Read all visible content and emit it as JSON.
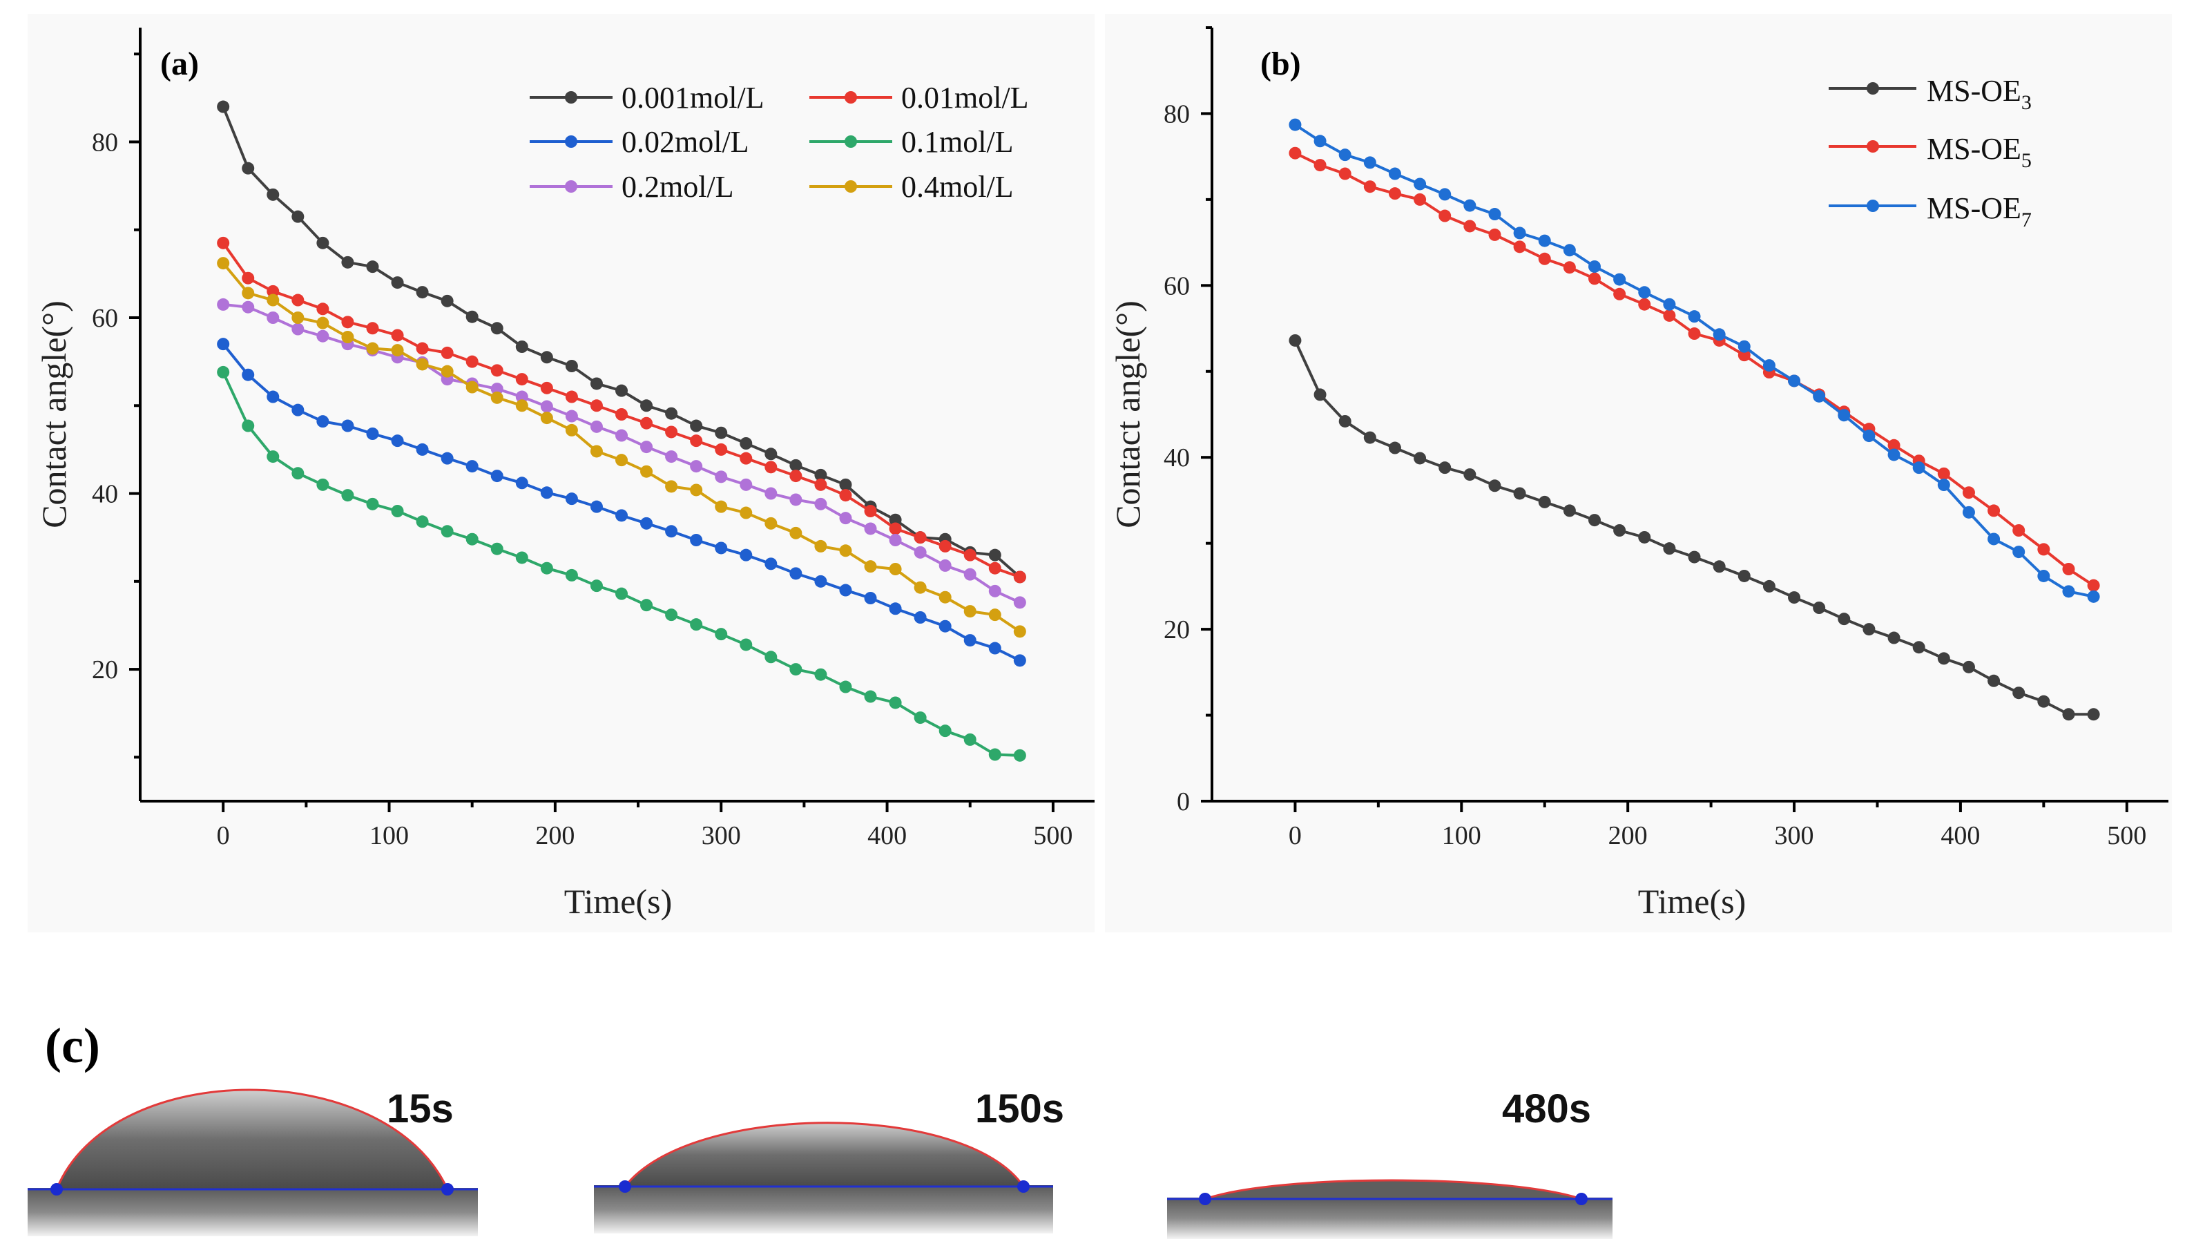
{
  "chart_data": [
    {
      "type": "line",
      "panel_label": "(a)",
      "xlabel": "Time(s)",
      "ylabel": "Contact angle(°)",
      "xlim": [
        -50,
        525
      ],
      "ylim": [
        5,
        93
      ],
      "xticks": [
        0,
        100,
        200,
        300,
        400,
        500
      ],
      "yticks": [
        20,
        40,
        60,
        80
      ],
      "x": [
        0,
        15,
        30,
        45,
        60,
        75,
        90,
        105,
        120,
        135,
        150,
        165,
        180,
        195,
        210,
        225,
        240,
        255,
        270,
        285,
        300,
        315,
        330,
        345,
        360,
        375,
        390,
        405,
        420,
        435,
        450,
        465,
        480
      ],
      "legend_position": "top-right",
      "series": [
        {
          "name": "0.001mol/L",
          "color": "#404040",
          "values": [
            84.0,
            77.0,
            74.0,
            71.5,
            68.5,
            66.3,
            65.8,
            64.0,
            62.9,
            61.9,
            60.1,
            58.8,
            56.7,
            55.5,
            54.5,
            52.5,
            51.7,
            50.0,
            49.1,
            47.7,
            46.9,
            45.7,
            44.5,
            43.2,
            42.1,
            41.0,
            38.5,
            37.0,
            35.0,
            34.8,
            33.3,
            33.0,
            30.5
          ]
        },
        {
          "name": "0.01mol/L",
          "color": "#e8382f",
          "values": [
            68.5,
            64.5,
            63.0,
            62.0,
            61.0,
            59.5,
            58.8,
            58.0,
            56.5,
            56.0,
            55.0,
            54.0,
            53.0,
            52.0,
            51.0,
            50.0,
            49.0,
            48.0,
            47.0,
            46.0,
            45.0,
            44.0,
            43.0,
            42.0,
            41.0,
            39.8,
            38.0,
            36.0,
            35.0,
            34.0,
            33.0,
            31.5,
            30.5
          ]
        },
        {
          "name": "0.02mol/L",
          "color": "#1f5fd0",
          "values": [
            57.0,
            53.5,
            51.0,
            49.5,
            48.2,
            47.7,
            46.8,
            46.0,
            45.0,
            44.0,
            43.1,
            42.0,
            41.2,
            40.1,
            39.4,
            38.5,
            37.5,
            36.6,
            35.7,
            34.7,
            33.8,
            33.0,
            32.0,
            30.9,
            30.0,
            29.0,
            28.1,
            26.9,
            25.9,
            24.9,
            23.3,
            22.4,
            21.0
          ]
        },
        {
          "name": "0.1mol/L",
          "color": "#2ea86a",
          "values": [
            53.8,
            47.7,
            44.2,
            42.3,
            41.0,
            39.8,
            38.8,
            38.0,
            36.8,
            35.7,
            34.8,
            33.7,
            32.7,
            31.5,
            30.7,
            29.5,
            28.6,
            27.3,
            26.2,
            25.1,
            24.0,
            22.8,
            21.4,
            20.0,
            19.4,
            18.0,
            16.9,
            16.2,
            14.5,
            13.0,
            12.0,
            10.3,
            10.2
          ]
        },
        {
          "name": "0.2mol/L",
          "color": "#b072d8",
          "values": [
            61.5,
            61.2,
            60.0,
            58.7,
            57.9,
            57.0,
            56.3,
            55.5,
            54.9,
            53.0,
            52.5,
            51.9,
            51.0,
            49.9,
            48.8,
            47.6,
            46.6,
            45.3,
            44.2,
            43.1,
            41.9,
            41.0,
            40.0,
            39.3,
            38.8,
            37.2,
            36.0,
            34.7,
            33.3,
            31.8,
            30.8,
            28.9,
            27.6
          ]
        },
        {
          "name": "0.4mol/L",
          "color": "#d4a010",
          "values": [
            66.2,
            62.8,
            62.0,
            60.0,
            59.4,
            57.8,
            56.5,
            56.3,
            54.7,
            53.9,
            52.1,
            50.9,
            50.0,
            48.6,
            47.2,
            44.8,
            43.8,
            42.5,
            40.8,
            40.4,
            38.5,
            37.8,
            36.6,
            35.5,
            34.0,
            33.5,
            31.7,
            31.4,
            29.3,
            28.2,
            26.6,
            26.2,
            24.3
          ]
        }
      ]
    },
    {
      "type": "line",
      "panel_label": "(b)",
      "xlabel": "Time(s)",
      "ylabel": "Contact angle(°)",
      "xlim": [
        -50,
        525
      ],
      "ylim": [
        0,
        90
      ],
      "xticks": [
        0,
        100,
        200,
        300,
        400,
        500
      ],
      "yticks": [
        0,
        20,
        40,
        60,
        80
      ],
      "x": [
        0,
        15,
        30,
        45,
        60,
        75,
        90,
        105,
        120,
        135,
        150,
        165,
        180,
        195,
        210,
        225,
        240,
        255,
        270,
        285,
        300,
        315,
        330,
        345,
        360,
        375,
        390,
        405,
        420,
        435,
        450,
        465,
        480
      ],
      "legend_position": "top-right",
      "series": [
        {
          "name": "MS-OE",
          "subscript": "3",
          "color": "#404040",
          "values": [
            53.6,
            47.3,
            44.2,
            42.3,
            41.1,
            39.9,
            38.8,
            38.0,
            36.7,
            35.8,
            34.8,
            33.8,
            32.7,
            31.5,
            30.7,
            29.4,
            28.4,
            27.3,
            26.2,
            25.0,
            23.7,
            22.5,
            21.2,
            20.0,
            19.0,
            17.9,
            16.6,
            15.6,
            14.0,
            12.6,
            11.6,
            10.1,
            10.1
          ]
        },
        {
          "name": "MS-OE",
          "subscript": "5",
          "color": "#e8382f",
          "values": [
            75.4,
            74.0,
            73.0,
            71.5,
            70.7,
            70.0,
            68.1,
            66.9,
            65.9,
            64.5,
            63.1,
            62.1,
            60.8,
            59.0,
            57.8,
            56.5,
            54.4,
            53.6,
            51.9,
            49.9,
            48.9,
            47.3,
            45.3,
            43.3,
            41.4,
            39.6,
            38.1,
            35.9,
            33.8,
            31.5,
            29.3,
            27.0,
            25.1
          ]
        },
        {
          "name": "MS-OE",
          "subscript": "7",
          "color": "#1f6fd4",
          "values": [
            78.7,
            76.8,
            75.2,
            74.3,
            73.0,
            71.8,
            70.6,
            69.3,
            68.3,
            66.1,
            65.2,
            64.1,
            62.2,
            60.7,
            59.2,
            57.8,
            56.4,
            54.3,
            52.9,
            50.7,
            48.9,
            47.1,
            44.9,
            42.5,
            40.3,
            38.8,
            36.8,
            33.6,
            30.5,
            29.0,
            26.2,
            24.4,
            23.8
          ]
        }
      ]
    }
  ],
  "panel_c": {
    "label": "(c)",
    "photos": [
      {
        "time_label": "15s"
      },
      {
        "time_label": "150s"
      },
      {
        "time_label": "480s"
      }
    ]
  }
}
